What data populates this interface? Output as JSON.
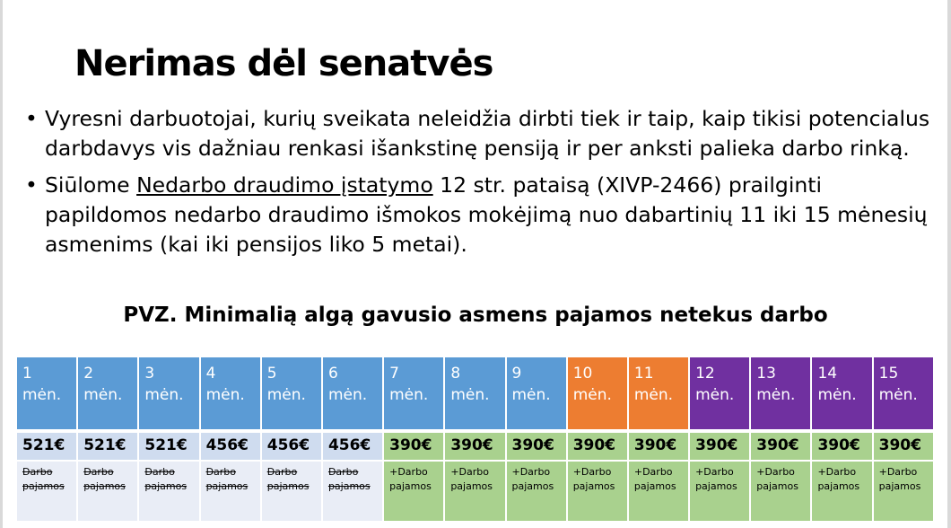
{
  "title": "Nerimas dėl senatvės",
  "bullets": [
    {
      "text": "Vyresni darbuotojai, kurių sveikata neleidžia dirbti tiek ir taip, kaip tikisi potencialus darbdavys vis dažniau renkasi išankstinę pensiją ir per anksti palieka darbo rinką."
    },
    {
      "before": "Siūlome ",
      "link": "Nedarbo draudimo įstatymo",
      "after": " 12 str. pataisą (XIVP-2466) prailginti papildomos nedarbo draudimo išmokos mokėjimą nuo dabartinių 11 iki 15 mėnesių asmenims (kai iki pensijos liko 5 metai)."
    }
  ],
  "subtitle": "PVZ. Minimalią algą gavusio asmens pajamos netekus darbo",
  "colors": {
    "blue": "#5b9bd5",
    "orange": "#ed7d31",
    "purple": "#7030a0",
    "green": "#a9d18e",
    "lightblue": "#cfdcef",
    "paleblue": "#e9edf6"
  },
  "months": [
    {
      "num": "1",
      "unit": "mėn.",
      "amount": "521€",
      "note": "Darbo pajamos",
      "group": "blue"
    },
    {
      "num": "2",
      "unit": "mėn.",
      "amount": "521€",
      "note": "Darbo pajamos",
      "group": "blue"
    },
    {
      "num": "3",
      "unit": "mėn.",
      "amount": "521€",
      "note": "Darbo pajamos",
      "group": "blue"
    },
    {
      "num": "4",
      "unit": "mėn.",
      "amount": "456€",
      "note": "Darbo pajamos",
      "group": "blue"
    },
    {
      "num": "5",
      "unit": "mėn.",
      "amount": "456€",
      "note": "Darbo pajamos",
      "group": "blue"
    },
    {
      "num": "6",
      "unit": "mėn.",
      "amount": "456€",
      "note": "Darbo pajamos",
      "group": "blue"
    },
    {
      "num": "7",
      "unit": "mėn.",
      "amount": "390€",
      "note": "+Darbo pajamos",
      "group": "blue"
    },
    {
      "num": "8",
      "unit": "mėn.",
      "amount": "390€",
      "note": "+Darbo pajamos",
      "group": "blue"
    },
    {
      "num": "9",
      "unit": "mėn.",
      "amount": "390€",
      "note": "+Darbo pajamos",
      "group": "blue"
    },
    {
      "num": "10",
      "unit": "mėn.",
      "amount": "390€",
      "note": "+Darbo pajamos",
      "group": "orange"
    },
    {
      "num": "11",
      "unit": "mėn.",
      "amount": "390€",
      "note": "+Darbo pajamos",
      "group": "orange"
    },
    {
      "num": "12",
      "unit": "mėn.",
      "amount": "390€",
      "note": "+Darbo pajamos",
      "group": "purple"
    },
    {
      "num": "13",
      "unit": "mėn.",
      "amount": "390€",
      "note": "+Darbo pajamos",
      "group": "purple"
    },
    {
      "num": "14",
      "unit": "mėn.",
      "amount": "390€",
      "note": "+Darbo pajamos",
      "group": "purple"
    },
    {
      "num": "15",
      "unit": "mėn.",
      "amount": "390€",
      "note": "+Darbo pajamos",
      "group": "purple"
    }
  ]
}
